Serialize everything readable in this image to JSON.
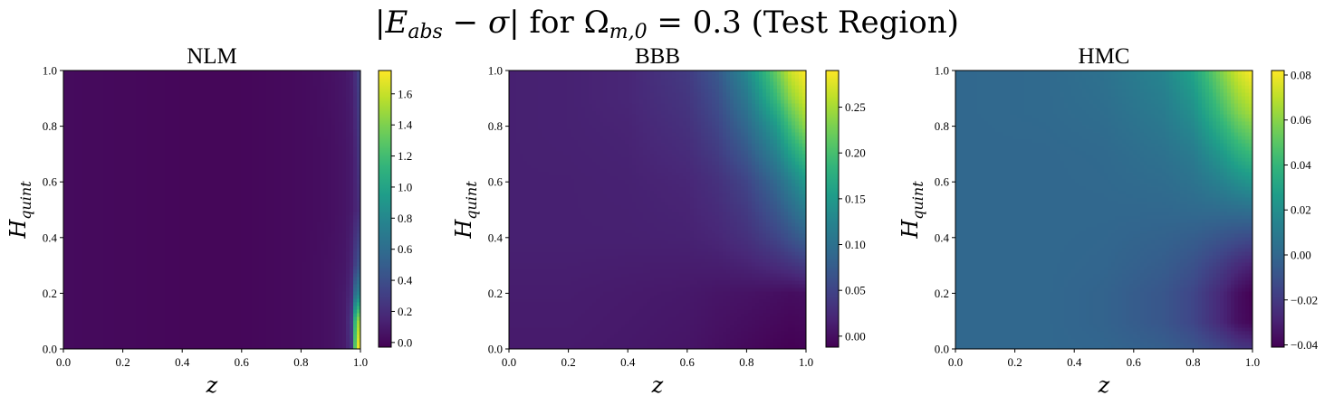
{
  "figure": {
    "suptitle": {
      "abs_open": "|",
      "E": "E",
      "E_sub": "abs",
      "minus": " − ",
      "sigma": "σ",
      "abs_close": "|",
      "for": " for ",
      "Omega": "Ω",
      "Omega_sub": "m,0",
      "rest": " = 0.3 (Test Region)"
    }
  },
  "chart_data": [
    {
      "type": "heatmap",
      "title": "NLM",
      "xlabel": "z",
      "ylabel": {
        "base": "H",
        "sub": "quint"
      },
      "xlim": [
        0.0,
        1.0
      ],
      "ylim": [
        0.0,
        1.0
      ],
      "xticks": [
        "0.0",
        "0.2",
        "0.4",
        "0.6",
        "0.8",
        "1.0"
      ],
      "yticks": [
        "0.0",
        "0.2",
        "0.4",
        "0.6",
        "0.8",
        "1.0"
      ],
      "colormap": "viridis",
      "clim": [
        -0.03,
        1.75
      ],
      "cbar_ticks": [
        "0.0",
        "0.2",
        "0.4",
        "0.6",
        "0.8",
        "1.0",
        "1.2",
        "1.4",
        "1.6"
      ],
      "field": {
        "x": [
          0.0,
          0.2,
          0.4,
          0.6,
          0.8,
          0.9,
          0.95,
          0.97,
          0.98,
          0.99,
          1.0
        ],
        "y": [
          0.0,
          0.1,
          0.2,
          0.3,
          0.5,
          0.7,
          1.0
        ],
        "z": [
          [
            0.02,
            0.01,
            0.0,
            0.0,
            0.02,
            0.05,
            0.1,
            0.25,
            1.2,
            1.7,
            1.75
          ],
          [
            0.02,
            0.01,
            0.0,
            0.0,
            0.02,
            0.05,
            0.1,
            0.3,
            1.1,
            1.4,
            1.6
          ],
          [
            0.02,
            0.01,
            0.0,
            0.0,
            0.02,
            0.05,
            0.1,
            0.2,
            0.6,
            0.7,
            0.8
          ],
          [
            0.02,
            0.01,
            0.0,
            0.0,
            0.02,
            0.05,
            0.08,
            0.15,
            0.3,
            0.4,
            0.45
          ],
          [
            0.02,
            0.01,
            0.0,
            0.0,
            0.02,
            0.04,
            0.07,
            0.1,
            0.14,
            0.18,
            0.2
          ],
          [
            0.02,
            0.01,
            0.0,
            0.0,
            0.02,
            0.04,
            0.07,
            0.1,
            0.14,
            0.2,
            0.3
          ],
          [
            0.02,
            0.01,
            0.0,
            0.0,
            0.02,
            0.05,
            0.08,
            0.12,
            0.18,
            0.28,
            0.35
          ]
        ]
      }
    },
    {
      "type": "heatmap",
      "title": "BBB",
      "xlabel": "z",
      "ylabel": {
        "base": "H",
        "sub": "quint"
      },
      "xlim": [
        0.0,
        1.0
      ],
      "ylim": [
        0.0,
        1.0
      ],
      "xticks": [
        "0.0",
        "0.2",
        "0.4",
        "0.6",
        "0.8",
        "1.0"
      ],
      "yticks": [
        "0.0",
        "0.2",
        "0.4",
        "0.6",
        "0.8",
        "1.0"
      ],
      "colormap": "viridis",
      "clim": [
        -0.012,
        0.29
      ],
      "cbar_ticks": [
        "0.00",
        "0.05",
        "0.10",
        "0.15",
        "0.20",
        "0.25"
      ],
      "field": {
        "x": [
          0.0,
          0.2,
          0.4,
          0.6,
          0.7,
          0.8,
          0.9,
          0.95,
          1.0
        ],
        "y": [
          0.0,
          0.2,
          0.4,
          0.6,
          0.8,
          0.9,
          1.0
        ],
        "z": [
          [
            0.01,
            0.01,
            0.008,
            0.005,
            0.0,
            -0.005,
            -0.01,
            -0.012,
            -0.01
          ],
          [
            0.012,
            0.012,
            0.01,
            0.008,
            0.005,
            0.003,
            0.0,
            -0.002,
            0.0
          ],
          [
            0.015,
            0.015,
            0.015,
            0.016,
            0.02,
            0.03,
            0.05,
            0.065,
            0.08
          ],
          [
            0.015,
            0.015,
            0.016,
            0.02,
            0.03,
            0.05,
            0.09,
            0.12,
            0.15
          ],
          [
            0.015,
            0.016,
            0.018,
            0.03,
            0.05,
            0.09,
            0.15,
            0.2,
            0.24
          ],
          [
            0.015,
            0.016,
            0.02,
            0.035,
            0.06,
            0.11,
            0.19,
            0.24,
            0.27
          ],
          [
            0.015,
            0.016,
            0.02,
            0.04,
            0.07,
            0.13,
            0.22,
            0.27,
            0.29
          ]
        ]
      }
    },
    {
      "type": "heatmap",
      "title": "HMC",
      "xlabel": "z",
      "ylabel": {
        "base": "H",
        "sub": "quint"
      },
      "xlim": [
        0.0,
        1.0
      ],
      "ylim": [
        0.0,
        1.0
      ],
      "xticks": [
        "0.0",
        "0.2",
        "0.4",
        "0.6",
        "0.8",
        "1.0"
      ],
      "yticks": [
        "0.0",
        "0.2",
        "0.4",
        "0.6",
        "0.8",
        "1.0"
      ],
      "colormap": "viridis",
      "clim": [
        -0.041,
        0.082
      ],
      "cbar_ticks": [
        "−0.04",
        "−0.02",
        "0.00",
        "0.02",
        "0.04",
        "0.06",
        "0.08"
      ],
      "field": {
        "x": [
          0.0,
          0.3,
          0.5,
          0.7,
          0.8,
          0.9,
          0.95,
          1.0
        ],
        "y": [
          0.0,
          0.1,
          0.2,
          0.3,
          0.5,
          0.7,
          0.85,
          1.0
        ],
        "z": [
          [
            0.0,
            0.0,
            -0.001,
            -0.004,
            -0.008,
            -0.015,
            -0.02,
            -0.022
          ],
          [
            0.0,
            0.0,
            -0.002,
            -0.008,
            -0.015,
            -0.028,
            -0.036,
            -0.04
          ],
          [
            0.0,
            0.0,
            -0.002,
            -0.008,
            -0.015,
            -0.028,
            -0.036,
            -0.041
          ],
          [
            0.0,
            0.0,
            -0.001,
            -0.005,
            -0.01,
            -0.02,
            -0.026,
            -0.03
          ],
          [
            0.0,
            0.0,
            0.0,
            0.0,
            0.001,
            0.002,
            0.003,
            0.004
          ],
          [
            0.0,
            0.0,
            0.001,
            0.005,
            0.01,
            0.025,
            0.035,
            0.042
          ],
          [
            0.0,
            0.001,
            0.003,
            0.01,
            0.02,
            0.045,
            0.058,
            0.066
          ],
          [
            0.0,
            0.001,
            0.005,
            0.015,
            0.03,
            0.06,
            0.074,
            0.082
          ]
        ]
      }
    }
  ]
}
